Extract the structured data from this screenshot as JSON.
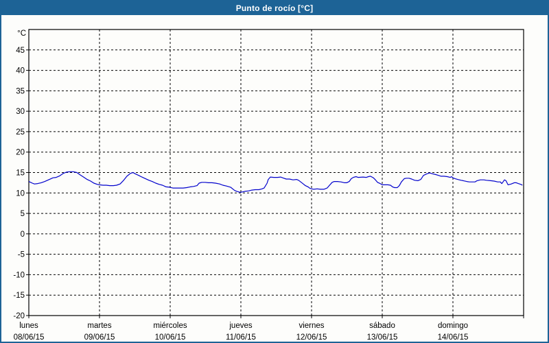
{
  "window": {
    "border_color": "#1D6396",
    "background": "#FDFDFB"
  },
  "header": {
    "title": "Punto de rocío [°C]",
    "background": "#1D6396",
    "text_color": "#FFFFFF"
  },
  "chart_data": {
    "type": "line",
    "title": "Punto de rocío [°C]",
    "ylabel": "°C",
    "ylim": [
      -20,
      50
    ],
    "yticks": [
      45,
      40,
      35,
      30,
      25,
      20,
      15,
      10,
      5,
      0,
      -5,
      -10,
      -15,
      -20
    ],
    "grid": true,
    "grid_style": "dashed-black",
    "legend": "none",
    "x_axis": {
      "unit": "hours",
      "hours_total": 168,
      "hours_per_day": 24,
      "days": [
        {
          "label": "lunes",
          "date": "08/06/15"
        },
        {
          "label": "martes",
          "date": "09/06/15"
        },
        {
          "label": "miércoles",
          "date": "10/06/15"
        },
        {
          "label": "jueves",
          "date": "11/06/15"
        },
        {
          "label": "viernes",
          "date": "12/06/15"
        },
        {
          "label": "sábado",
          "date": "13/06/15"
        },
        {
          "label": "domingo",
          "date": "14/06/15"
        }
      ]
    },
    "series": [
      {
        "name": "punto-de-rocio",
        "color": "#0000CC",
        "points": [
          [
            0,
            12.8
          ],
          [
            1.2,
            12.4
          ],
          [
            1.9,
            12.2
          ],
          [
            3,
            12.3
          ],
          [
            4.2,
            12.5
          ],
          [
            5.4,
            12.8
          ],
          [
            7,
            13.3
          ],
          [
            8.2,
            13.7
          ],
          [
            9.3,
            13.8
          ],
          [
            10.5,
            14.2
          ],
          [
            11.7,
            14.8
          ],
          [
            12.8,
            15.1
          ],
          [
            14,
            15.2
          ],
          [
            15.1,
            15.2
          ],
          [
            16.3,
            15.0
          ],
          [
            17.5,
            14.4
          ],
          [
            18.6,
            13.9
          ],
          [
            19.8,
            13.3
          ],
          [
            21,
            12.9
          ],
          [
            22.1,
            12.4
          ],
          [
            23.3,
            12.1
          ],
          [
            24,
            12.0
          ],
          [
            25.2,
            11.9
          ],
          [
            26.3,
            11.9
          ],
          [
            27.5,
            11.8
          ],
          [
            28.7,
            11.8
          ],
          [
            29.8,
            11.9
          ],
          [
            31,
            12.2
          ],
          [
            32.2,
            13.1
          ],
          [
            33.3,
            14.1
          ],
          [
            34.5,
            14.8
          ],
          [
            35.4,
            15.0
          ],
          [
            36.1,
            14.7
          ],
          [
            37.3,
            14.3
          ],
          [
            38.4,
            13.9
          ],
          [
            39.6,
            13.5
          ],
          [
            40.8,
            13.1
          ],
          [
            41.9,
            12.8
          ],
          [
            43.1,
            12.4
          ],
          [
            44.3,
            12.1
          ],
          [
            45.4,
            11.9
          ],
          [
            46.6,
            11.5
          ],
          [
            47.8,
            11.4
          ],
          [
            48.9,
            11.2
          ],
          [
            50.1,
            11.2
          ],
          [
            51.3,
            11.2
          ],
          [
            52.4,
            11.2
          ],
          [
            53.6,
            11.3
          ],
          [
            54.8,
            11.5
          ],
          [
            55.9,
            11.6
          ],
          [
            57.1,
            11.8
          ],
          [
            57.8,
            12.4
          ],
          [
            58.7,
            12.6
          ],
          [
            59.9,
            12.6
          ],
          [
            61,
            12.5
          ],
          [
            62.2,
            12.5
          ],
          [
            63.4,
            12.4
          ],
          [
            64.8,
            12.2
          ],
          [
            65.9,
            11.9
          ],
          [
            67.1,
            11.7
          ],
          [
            68.5,
            11.4
          ],
          [
            69.9,
            10.6
          ],
          [
            70.6,
            10.4
          ],
          [
            71.5,
            10.2
          ],
          [
            72.2,
            10.2
          ],
          [
            73.4,
            10.4
          ],
          [
            74.6,
            10.5
          ],
          [
            75.7,
            10.7
          ],
          [
            76.9,
            10.8
          ],
          [
            78.1,
            10.8
          ],
          [
            79.2,
            11.0
          ],
          [
            79.9,
            11.2
          ],
          [
            80.9,
            12.4
          ],
          [
            81.3,
            13.3
          ],
          [
            82,
            13.9
          ],
          [
            83.2,
            13.8
          ],
          [
            84.4,
            13.8
          ],
          [
            85.5,
            13.9
          ],
          [
            86.2,
            13.7
          ],
          [
            87.4,
            13.4
          ],
          [
            88.5,
            13.4
          ],
          [
            89.7,
            13.2
          ],
          [
            90.9,
            13.3
          ],
          [
            91.6,
            13.1
          ],
          [
            92.5,
            12.6
          ],
          [
            93.2,
            12.2
          ],
          [
            93.9,
            11.8
          ],
          [
            94.8,
            11.5
          ],
          [
            95.5,
            11.1
          ],
          [
            96.7,
            10.9
          ],
          [
            97.9,
            11.0
          ],
          [
            99,
            10.9
          ],
          [
            100.2,
            10.9
          ],
          [
            101.3,
            11.2
          ],
          [
            102,
            11.8
          ],
          [
            103,
            12.6
          ],
          [
            103.7,
            12.8
          ],
          [
            104.8,
            12.8
          ],
          [
            106,
            12.7
          ],
          [
            107.2,
            12.5
          ],
          [
            107.9,
            12.5
          ],
          [
            108.8,
            12.8
          ],
          [
            109.5,
            13.5
          ],
          [
            110.2,
            13.8
          ],
          [
            111.1,
            14.0
          ],
          [
            111.8,
            13.8
          ],
          [
            113.5,
            13.9
          ],
          [
            114.6,
            13.8
          ],
          [
            115.3,
            14.0
          ],
          [
            116,
            14.1
          ],
          [
            117,
            13.7
          ],
          [
            117.7,
            13.2
          ],
          [
            118.4,
            12.6
          ],
          [
            119.3,
            12.3
          ],
          [
            120,
            12.0
          ],
          [
            120.7,
            12.0
          ],
          [
            121.9,
            12.0
          ],
          [
            122.8,
            11.9
          ],
          [
            123.5,
            11.5
          ],
          [
            124.2,
            11.3
          ],
          [
            125.1,
            11.3
          ],
          [
            125.8,
            11.8
          ],
          [
            126.5,
            12.7
          ],
          [
            127.5,
            13.5
          ],
          [
            128.2,
            13.6
          ],
          [
            129.1,
            13.6
          ],
          [
            130,
            13.4
          ],
          [
            131,
            13.1
          ],
          [
            132.1,
            13.0
          ],
          [
            133.1,
            13.3
          ],
          [
            134,
            14.3
          ],
          [
            135.2,
            14.7
          ],
          [
            136.1,
            14.9
          ],
          [
            137,
            14.7
          ],
          [
            138.2,
            14.5
          ],
          [
            139.1,
            14.3
          ],
          [
            140,
            14.1
          ],
          [
            141,
            14.1
          ],
          [
            142.1,
            14.0
          ],
          [
            143.1,
            13.8
          ],
          [
            143.5,
            14.0
          ],
          [
            144,
            13.7
          ],
          [
            144.7,
            13.5
          ],
          [
            145.6,
            13.3
          ],
          [
            146.8,
            13.1
          ],
          [
            147.5,
            13.0
          ],
          [
            148.7,
            12.8
          ],
          [
            149.6,
            12.7
          ],
          [
            150.8,
            12.7
          ],
          [
            151.5,
            12.7
          ],
          [
            152.2,
            13.0
          ],
          [
            153.3,
            13.2
          ],
          [
            154.5,
            13.2
          ],
          [
            155.4,
            13.1
          ],
          [
            156.8,
            13.0
          ],
          [
            158,
            12.9
          ],
          [
            159.2,
            12.7
          ],
          [
            160.1,
            12.7
          ],
          [
            160.6,
            12.3
          ],
          [
            161,
            12.7
          ],
          [
            161.5,
            13.2
          ],
          [
            162,
            13.0
          ],
          [
            162.7,
            12.0
          ],
          [
            163.8,
            12.2
          ],
          [
            164.8,
            12.5
          ],
          [
            165.5,
            12.5
          ],
          [
            166.2,
            12.3
          ],
          [
            167.1,
            12.1
          ],
          [
            167.6,
            11.9
          ]
        ]
      }
    ]
  }
}
